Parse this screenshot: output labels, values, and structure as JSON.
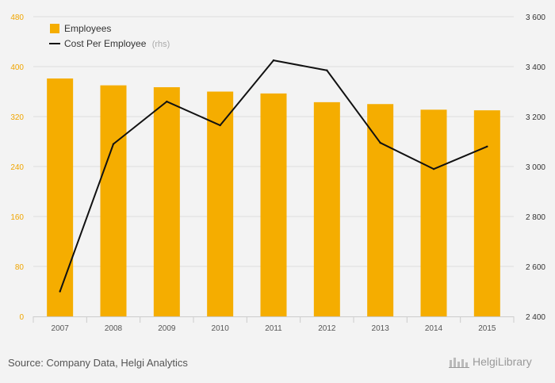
{
  "chart_data": {
    "type": "bar+line",
    "categories": [
      "2007",
      "2008",
      "2009",
      "2010",
      "2011",
      "2012",
      "2013",
      "2014",
      "2015"
    ],
    "series": [
      {
        "name": "Employees",
        "type": "bar",
        "axis": "left",
        "values": [
          381,
          370,
          367,
          360,
          357,
          343,
          340,
          331,
          330
        ]
      },
      {
        "name": "Cost Per Employee",
        "name_suffix": "(rhs)",
        "type": "line",
        "axis": "right",
        "values": [
          2500,
          3090,
          3260,
          3165,
          3425,
          3385,
          3095,
          2990,
          3080
        ]
      }
    ],
    "y_left": {
      "ticks": [
        "0",
        "80",
        "160",
        "240",
        "320",
        "400",
        "480"
      ],
      "range": [
        0,
        480
      ]
    },
    "y_right": {
      "ticks": [
        "2 400",
        "2 600",
        "2 800",
        "3 000",
        "3 200",
        "3 400",
        "3 600"
      ],
      "range": [
        2400,
        3600
      ]
    },
    "legend_position": "top-left",
    "grid": true,
    "colors": {
      "bar": "#f5ad00",
      "line": "#111111",
      "left_axis_text": "#f0a500",
      "grid": "#dddddd"
    }
  },
  "footer": {
    "source": "Source: Company Data, Helgi Analytics",
    "brand": "HelgiLibrary"
  }
}
